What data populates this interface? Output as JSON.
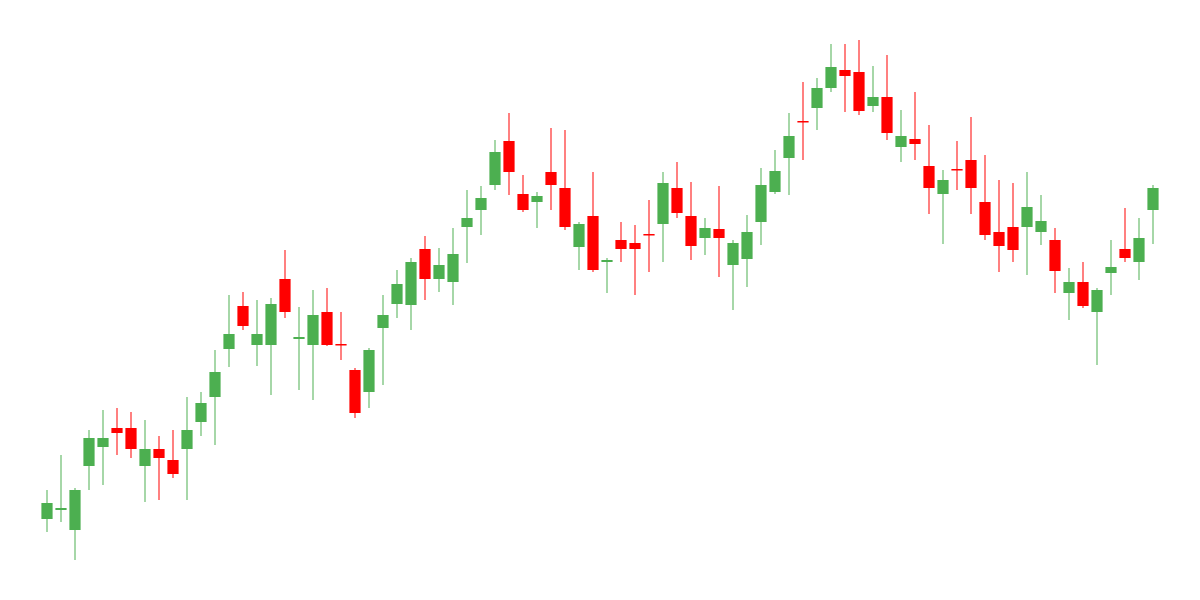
{
  "chart_data": {
    "type": "candlestick",
    "up_color": "#4caf50",
    "down_color": "#ff0000",
    "ylim": [
      0,
      600
    ],
    "open": [
      81,
      90,
      70,
      134,
      153,
      172,
      172,
      134,
      151,
      140,
      151,
      178,
      203,
      251,
      294,
      255,
      255,
      321,
      261,
      255,
      288,
      256,
      230,
      208,
      272,
      296,
      295,
      351,
      321,
      318,
      373,
      390,
      415,
      459,
      406,
      398,
      428,
      412,
      353,
      384,
      338,
      360,
      357,
      366,
      376,
      412,
      384,
      362,
      371,
      335,
      341,
      378,
      408,
      442,
      479,
      492,
      512,
      530,
      528,
      494,
      503,
      453,
      461,
      434,
      406,
      431,
      440,
      398,
      368,
      373,
      373,
      368,
      360,
      307,
      318,
      288,
      327,
      351,
      338,
      390
    ],
    "high": [
      110,
      145,
      112,
      170,
      190,
      192,
      188,
      180,
      164,
      170,
      203,
      208,
      250,
      305,
      308,
      300,
      302,
      350,
      293,
      310,
      312,
      288,
      232,
      252,
      305,
      330,
      342,
      364,
      352,
      372,
      410,
      414,
      460,
      487,
      425,
      408,
      472,
      470,
      378,
      428,
      342,
      378,
      375,
      400,
      428,
      438,
      418,
      382,
      414,
      360,
      385,
      432,
      450,
      487,
      518,
      522,
      556,
      556,
      560,
      534,
      545,
      490,
      508,
      475,
      430,
      459,
      483,
      445,
      420,
      417,
      428,
      405,
      372,
      332,
      338,
      312,
      360,
      392,
      382,
      415
    ],
    "low": [
      68,
      78,
      40,
      110,
      115,
      145,
      142,
      98,
      100,
      122,
      100,
      164,
      155,
      233,
      270,
      234,
      205,
      282,
      210,
      200,
      254,
      240,
      182,
      192,
      215,
      282,
      270,
      300,
      308,
      295,
      337,
      365,
      410,
      405,
      388,
      372,
      390,
      370,
      330,
      328,
      307,
      338,
      305,
      328,
      338,
      382,
      340,
      345,
      323,
      290,
      313,
      355,
      406,
      405,
      440,
      470,
      508,
      488,
      485,
      488,
      460,
      438,
      440,
      386,
      356,
      410,
      386,
      360,
      328,
      338,
      325,
      355,
      307,
      280,
      292,
      235,
      305,
      338,
      320,
      356
    ],
    "close": [
      97,
      92,
      110,
      162,
      162,
      167,
      151,
      151,
      142,
      126,
      170,
      197,
      228,
      266,
      274,
      266,
      296,
      288,
      263,
      285,
      255,
      255,
      187,
      250,
      285,
      316,
      338,
      321,
      335,
      346,
      382,
      402,
      448,
      428,
      390,
      404,
      415,
      373,
      376,
      330,
      340,
      351,
      351,
      365,
      417,
      387,
      354,
      372,
      362,
      357,
      368,
      415,
      429,
      464,
      478,
      512,
      533,
      524,
      489,
      503,
      467,
      464,
      456,
      412,
      420,
      430,
      412,
      365,
      354,
      350,
      393,
      379,
      329,
      318,
      294,
      310,
      333,
      342,
      362,
      412
    ]
  }
}
